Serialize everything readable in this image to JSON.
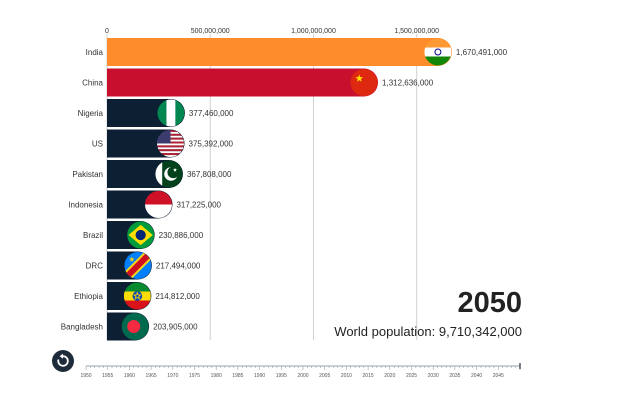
{
  "year": "2050",
  "world_population": {
    "label": "World population:",
    "value": "9,710,342,000"
  },
  "controls": {
    "replay_icon": "replay-icon"
  },
  "timeline": {
    "years": [
      "1950",
      "1955",
      "1960",
      "1965",
      "1970",
      "1975",
      "1980",
      "1985",
      "1990",
      "1995",
      "2000",
      "2005",
      "2010",
      "2015",
      "2020",
      "2025",
      "2030",
      "2035",
      "2040",
      "2045"
    ],
    "start": 1950,
    "end": 2050,
    "current": 2050
  },
  "chart_data": {
    "type": "bar",
    "orientation": "horizontal",
    "xlim": [
      0,
      1700000000
    ],
    "ticks": [
      {
        "value": 0,
        "label": "0"
      },
      {
        "value": 500000000,
        "label": "500,000,000"
      },
      {
        "value": 1000000000,
        "label": "1,000,000,000"
      },
      {
        "value": 1500000000,
        "label": "1,500,000,000"
      }
    ],
    "grid": true,
    "categories": [
      "India",
      "China",
      "Nigeria",
      "US",
      "Pakistan",
      "Indonesia",
      "Brazil",
      "DRC",
      "Ethiopia",
      "Bangladesh"
    ],
    "values": [
      1670491000,
      1312636000,
      377460000,
      375392000,
      367808000,
      317225000,
      230886000,
      217494000,
      214812000,
      203905000
    ],
    "value_labels": [
      "1,670,491,000",
      "1,312,636,000",
      "377,460,000",
      "375,392,000",
      "367,808,000",
      "317,225,000",
      "230,886,000",
      "217,494,000",
      "214,812,000",
      "203,905,000"
    ],
    "colors": [
      "#ff8c2b",
      "#c8102e",
      "#0d1f33",
      "#0d1f33",
      "#0d1f33",
      "#0d1f33",
      "#0d1f33",
      "#0d1f33",
      "#0d1f33",
      "#0d1f33"
    ],
    "flags": [
      "india-flag-icon",
      "china-flag-icon",
      "nigeria-flag-icon",
      "us-flag-icon",
      "pakistan-flag-icon",
      "indonesia-flag-icon",
      "brazil-flag-icon",
      "drc-flag-icon",
      "ethiopia-flag-icon",
      "bangladesh-flag-icon"
    ]
  }
}
